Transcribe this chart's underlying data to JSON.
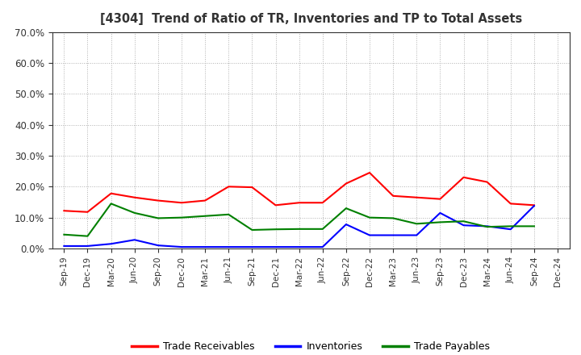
{
  "title": "[4304]  Trend of Ratio of TR, Inventories and TP to Total Assets",
  "x_labels": [
    "Sep-19",
    "Dec-19",
    "Mar-20",
    "Jun-20",
    "Sep-20",
    "Dec-20",
    "Mar-21",
    "Jun-21",
    "Sep-21",
    "Dec-21",
    "Mar-22",
    "Jun-22",
    "Sep-22",
    "Dec-22",
    "Mar-23",
    "Jun-23",
    "Sep-23",
    "Dec-23",
    "Mar-24",
    "Jun-24",
    "Sep-24",
    "Dec-24"
  ],
  "trade_receivables": [
    0.122,
    0.118,
    0.178,
    0.165,
    0.155,
    0.148,
    0.155,
    0.2,
    0.198,
    0.14,
    0.148,
    0.148,
    0.21,
    0.245,
    0.17,
    0.165,
    0.16,
    0.23,
    0.215,
    0.145,
    0.14,
    null
  ],
  "inventories": [
    0.008,
    0.008,
    0.015,
    0.028,
    0.01,
    0.005,
    0.005,
    0.005,
    0.005,
    0.005,
    0.005,
    0.005,
    0.078,
    0.043,
    0.043,
    0.043,
    0.115,
    0.075,
    0.072,
    0.062,
    0.138,
    null
  ],
  "trade_payables": [
    0.045,
    0.04,
    0.145,
    0.115,
    0.098,
    0.1,
    0.105,
    0.11,
    0.06,
    0.062,
    0.063,
    0.063,
    0.13,
    0.1,
    0.098,
    0.08,
    0.085,
    0.088,
    0.07,
    0.072,
    0.072,
    null
  ],
  "tr_color": "#ff0000",
  "inv_color": "#0000ff",
  "tp_color": "#008000",
  "ylim": [
    0,
    0.7
  ],
  "yticks": [
    0.0,
    0.1,
    0.2,
    0.3,
    0.4,
    0.5,
    0.6,
    0.7
  ],
  "background_color": "#ffffff",
  "grid_color": "#b0b0b0",
  "title_color": "#333333",
  "legend_labels": [
    "Trade Receivables",
    "Inventories",
    "Trade Payables"
  ]
}
